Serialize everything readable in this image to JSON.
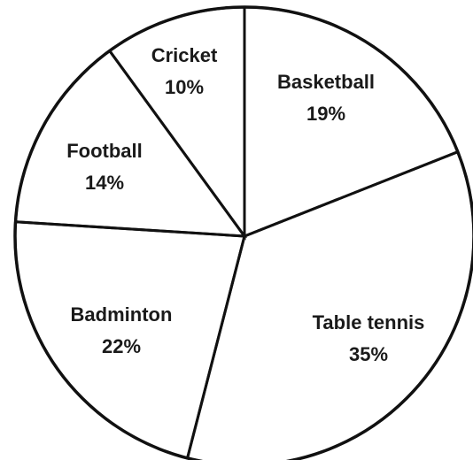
{
  "chart_data": {
    "type": "pie",
    "title": "",
    "slices": [
      {
        "label": "Basketball",
        "value": 19,
        "value_label": "19%"
      },
      {
        "label": "Table tennis",
        "value": 35,
        "value_label": "35%"
      },
      {
        "label": "Badminton",
        "value": 22,
        "value_label": "22%"
      },
      {
        "label": "Football",
        "value": 14,
        "value_label": "14%"
      },
      {
        "label": "Cricket",
        "value": 10,
        "value_label": "10%"
      }
    ],
    "legend": "none",
    "colors": {
      "background": "#ffffff",
      "stroke": "#111111",
      "text": "#1a1a1a"
    }
  }
}
